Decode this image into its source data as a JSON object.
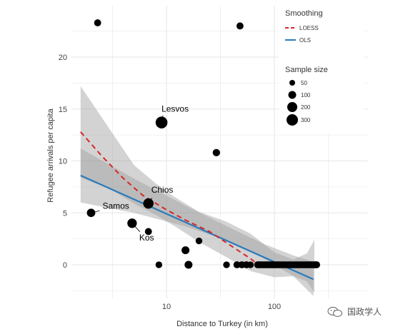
{
  "chart_data": {
    "type": "scatter",
    "xlabel": "Distance to Turkey (in km)",
    "ylabel": "Refugee arrivals per capita",
    "x_scale": "log10",
    "xlim": [
      2,
      250
    ],
    "ylim": [
      -2.5,
      24
    ],
    "x_ticks": [
      10,
      100
    ],
    "x_tick_labels": [
      "10",
      "100"
    ],
    "y_ticks": [
      0,
      5,
      10,
      15,
      20
    ],
    "y_tick_labels": [
      "0",
      "5",
      "10",
      "15",
      "20"
    ],
    "grid": true,
    "points": [
      {
        "x": 2.3,
        "y": 23.3,
        "size": 50
      },
      {
        "x": 48,
        "y": 23.0,
        "size": 50
      },
      {
        "x": 2.0,
        "y": 5.0,
        "size": 100,
        "label": "Samos"
      },
      {
        "x": 9.0,
        "y": 13.7,
        "size": 300,
        "label": "Lesvos"
      },
      {
        "x": 6.8,
        "y": 5.9,
        "size": 200,
        "label": "Chios"
      },
      {
        "x": 4.8,
        "y": 4.0,
        "size": 150,
        "label": "Kos"
      },
      {
        "x": 29,
        "y": 10.8,
        "size": 60
      },
      {
        "x": 6.8,
        "y": 3.2,
        "size": 50
      },
      {
        "x": 15,
        "y": 1.4,
        "size": 80
      },
      {
        "x": 20,
        "y": 2.3,
        "size": 40
      },
      {
        "x": 8.5,
        "y": 0,
        "size": 40
      },
      {
        "x": 16,
        "y": 0,
        "size": 80
      },
      {
        "x": 36,
        "y": 0,
        "size": 40
      },
      {
        "x": 45,
        "y": 0,
        "size": 50
      },
      {
        "x": 50,
        "y": 0,
        "size": 50
      },
      {
        "x": 55,
        "y": 0,
        "size": 50
      },
      {
        "x": 60,
        "y": 0,
        "size": 40
      },
      {
        "x": 70,
        "y": 0,
        "size": 50
      },
      {
        "x": 73,
        "y": 0,
        "size": 50
      },
      {
        "x": 76,
        "y": 0,
        "size": 50
      },
      {
        "x": 80,
        "y": 0,
        "size": 50
      },
      {
        "x": 84,
        "y": 0,
        "size": 50
      },
      {
        "x": 88,
        "y": 0,
        "size": 50
      },
      {
        "x": 92,
        "y": 0,
        "size": 50
      },
      {
        "x": 96,
        "y": 0,
        "size": 50
      },
      {
        "x": 100,
        "y": 0,
        "size": 50
      },
      {
        "x": 105,
        "y": 0,
        "size": 50
      },
      {
        "x": 110,
        "y": 0,
        "size": 50
      },
      {
        "x": 116,
        "y": 0,
        "size": 50
      },
      {
        "x": 122,
        "y": 0,
        "size": 50
      },
      {
        "x": 128,
        "y": 0,
        "size": 50
      },
      {
        "x": 135,
        "y": 0,
        "size": 50
      },
      {
        "x": 142,
        "y": 0,
        "size": 50
      },
      {
        "x": 150,
        "y": 0,
        "size": 50
      },
      {
        "x": 158,
        "y": 0,
        "size": 50
      },
      {
        "x": 166,
        "y": 0,
        "size": 50
      },
      {
        "x": 175,
        "y": 0,
        "size": 50
      },
      {
        "x": 184,
        "y": 0,
        "size": 50
      },
      {
        "x": 193,
        "y": 0,
        "size": 50
      },
      {
        "x": 202,
        "y": 0,
        "size": 50
      },
      {
        "x": 212,
        "y": 0,
        "size": 50
      },
      {
        "x": 222,
        "y": 0,
        "size": 50
      },
      {
        "x": 232,
        "y": 0,
        "size": 50
      },
      {
        "x": 240,
        "y": 0,
        "size": 50
      },
      {
        "x": 246,
        "y": 0,
        "size": 50
      }
    ],
    "ols_line": {
      "x": [
        1.6,
        230
      ],
      "y": [
        8.6,
        -1.4
      ]
    },
    "ols_band": {
      "x": [
        1.6,
        5,
        15,
        40,
        80,
        150,
        230
      ],
      "upper": [
        11.2,
        8.3,
        5.7,
        3.5,
        2.0,
        0.9,
        0.3
      ],
      "lower": [
        6.0,
        5.0,
        3.7,
        2.2,
        0.6,
        -1.1,
        -3.0
      ]
    },
    "loess_line": {
      "x": [
        1.6,
        2.5,
        4,
        6,
        8,
        10,
        15,
        25,
        40,
        60,
        75
      ],
      "y": [
        12.8,
        10.5,
        8.3,
        6.7,
        5.9,
        5.3,
        4.3,
        3.2,
        1.8,
        0.6,
        -0.2
      ]
    },
    "loess_band": {
      "x": [
        1.6,
        3,
        5,
        8,
        12,
        20,
        35,
        60,
        100,
        150,
        200,
        235
      ],
      "upper": [
        17.2,
        13.0,
        9.6,
        7.8,
        6.5,
        5.1,
        4.2,
        3.0,
        1.2,
        0.5,
        1.1,
        2.4
      ],
      "lower": [
        8.4,
        7.3,
        5.9,
        4.8,
        3.7,
        2.2,
        0.8,
        -0.6,
        -1.2,
        -1.1,
        -1.6,
        -2.7
      ]
    },
    "legend": {
      "placement": "top-right",
      "smoothing_title": "Smoothing",
      "smoothing_items": [
        {
          "label": "LOESS",
          "color": "#d62728",
          "style": "dashed"
        },
        {
          "label": "OLS",
          "color": "#2b7bba",
          "style": "solid"
        }
      ],
      "size_title": "Sample size",
      "size_items": [
        {
          "label": "50",
          "size": 50
        },
        {
          "label": "100",
          "size": 100
        },
        {
          "label": "200",
          "size": 200
        },
        {
          "label": "300",
          "size": 300
        }
      ]
    },
    "colors": {
      "point": "#000000",
      "ols": "#2b7bba",
      "loess": "#d62728",
      "band": "#9e9e9e",
      "grid": "#e6e6e6"
    }
  },
  "watermark": {
    "text": "国政学人",
    "icon": "wechat-logo"
  }
}
